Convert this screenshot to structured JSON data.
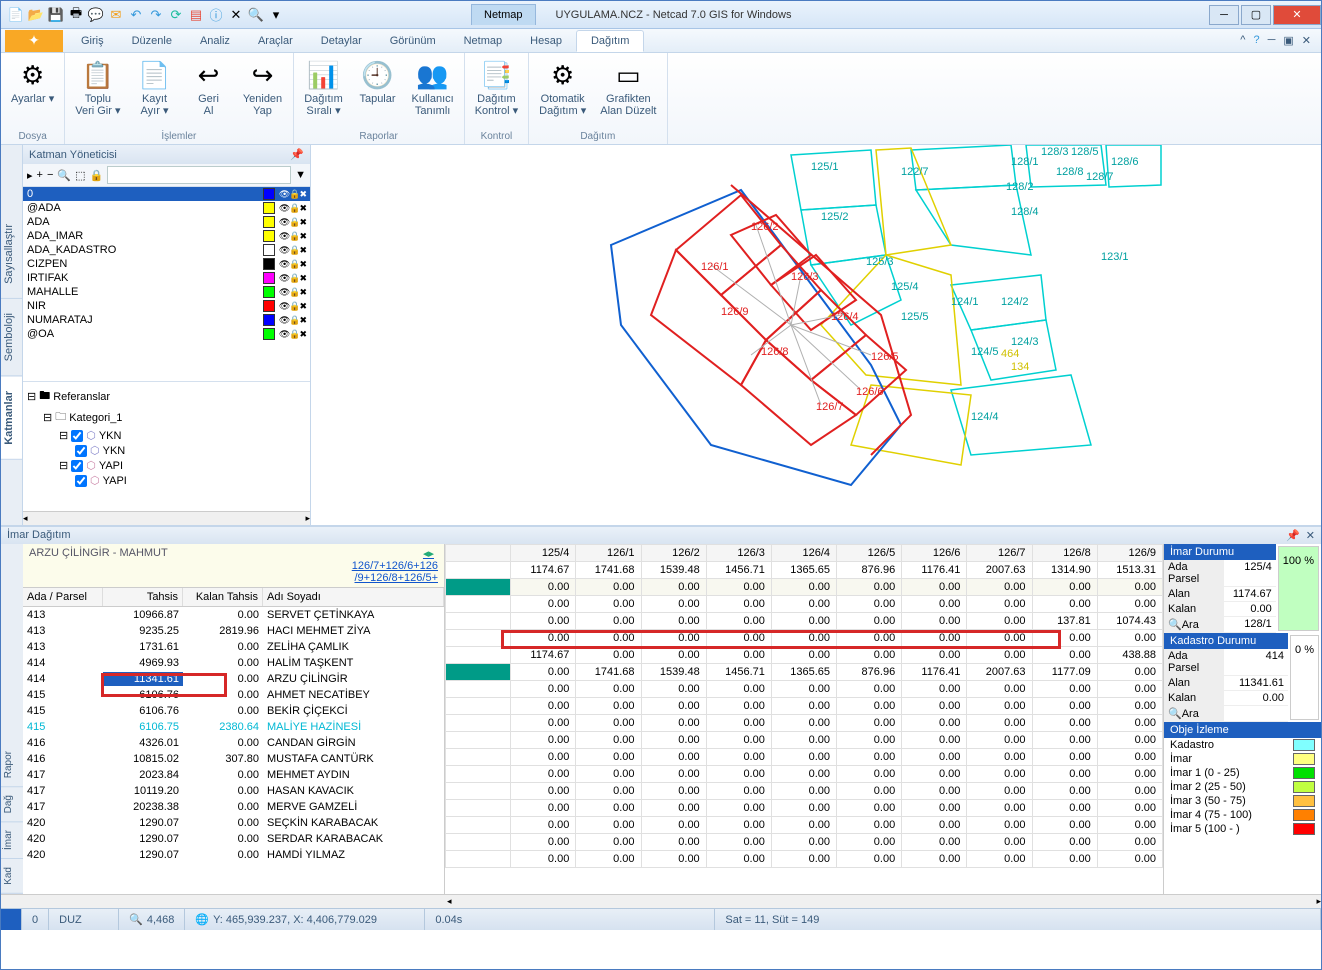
{
  "window": {
    "tab": "Netmap",
    "title": "UYGULAMA.NCZ - Netcad 7.0 GIS for Windows"
  },
  "menu": {
    "items": [
      "Giriş",
      "Düzenle",
      "Analiz",
      "Araçlar",
      "Detaylar",
      "Görünüm",
      "Netmap",
      "Hesap",
      "Dağıtım"
    ],
    "active": "Dağıtım"
  },
  "ribbon": {
    "groups": [
      {
        "title": "Dosya",
        "btns": [
          {
            "ic": "⚙",
            "l1": "Ayarlar",
            "dd": true
          }
        ]
      },
      {
        "title": "İşlemler",
        "btns": [
          {
            "ic": "📋",
            "l1": "Toplu",
            "l2": "Veri Gir",
            "dd": true
          },
          {
            "ic": "📄",
            "l1": "Kayıt",
            "l2": "Ayır",
            "dd": true
          },
          {
            "ic": "↩",
            "l1": "Geri",
            "l2": "Al"
          },
          {
            "ic": "↪",
            "l1": "Yeniden",
            "l2": "Yap"
          }
        ]
      },
      {
        "title": "Raporlar",
        "btns": [
          {
            "ic": "📊",
            "l1": "Dağıtım",
            "l2": "Sıralı",
            "dd": true
          },
          {
            "ic": "🕘",
            "l1": "Tapular"
          },
          {
            "ic": "👥",
            "l1": "Kullanıcı",
            "l2": "Tanımlı"
          }
        ]
      },
      {
        "title": "Kontrol",
        "btns": [
          {
            "ic": "📑",
            "l1": "Dağıtım",
            "l2": "Kontrol",
            "dd": true
          }
        ]
      },
      {
        "title": "Dağıtım",
        "btns": [
          {
            "ic": "⚙",
            "l1": "Otomatik",
            "l2": "Dağıtım",
            "dd": true
          },
          {
            "ic": "▭",
            "l1": "Grafikten",
            "l2": "Alan Düzelt"
          }
        ]
      }
    ]
  },
  "layerPanel": {
    "title": "Katman Yöneticisi",
    "layers": [
      {
        "n": "0",
        "c": "#0000ff",
        "sel": true
      },
      {
        "n": "@ADA",
        "c": "#ffff00"
      },
      {
        "n": "ADA",
        "c": "#ffff00"
      },
      {
        "n": "  ADA_IMAR",
        "c": "#ffff00"
      },
      {
        "n": "  ADA_KADASTRO",
        "c": "#ffffff"
      },
      {
        "n": "CIZPEN",
        "c": "#000000"
      },
      {
        "n": "IRTIFAK",
        "c": "#ff00ff"
      },
      {
        "n": "MAHALLE",
        "c": "#00ff00"
      },
      {
        "n": "NIR",
        "c": "#ff0000"
      },
      {
        "n": "NUMARATAJ",
        "c": "#0000ff"
      },
      {
        "n": "@OA",
        "c": "#00ff00"
      }
    ],
    "tree": {
      "root": "Referanslar",
      "cat": "Kategori_1",
      "items": [
        "YKN",
        "YKN",
        "YAPI",
        "YAPI"
      ]
    }
  },
  "sideTabs": [
    "Sayısallaştır",
    "Semboloji",
    "Katmanlar"
  ],
  "map": {
    "red_labels": [
      "126/1",
      "126/2",
      "126/3",
      "126/4",
      "126/5",
      "126/6",
      "126/7",
      "126/8",
      "126/9"
    ],
    "cyan_labels": [
      "125/1",
      "125/2",
      "125/3",
      "125/4",
      "125/5",
      "122/7",
      "128/1",
      "128/2",
      "128/3",
      "128/4",
      "128/5",
      "128/6",
      "128/7",
      "128/8",
      "123/1",
      "124/1",
      "124/2",
      "124/3",
      "124/4",
      "124/5",
      "464",
      "134"
    ]
  },
  "bottomPanel": {
    "title": "İmar Dağıtım",
    "owner": "ARZU ÇİLİNGİR - MAHMUT",
    "link1": "126/7+126/6+126",
    "link2": "/9+126/8+126/5+",
    "cols": [
      "Ada / Parsel",
      "Tahsis",
      "Kalan Tahsis",
      "Adı Soyadı"
    ],
    "rows": [
      {
        "a": "413",
        "t": "10966.87",
        "k": "0.00",
        "n": "SERVET ÇETİNKAYA"
      },
      {
        "a": "413",
        "t": "9235.25",
        "k": "2819.96",
        "n": "HACI MEHMET ZİYA"
      },
      {
        "a": "413",
        "t": "1731.61",
        "k": "0.00",
        "n": "ZELİHA ÇAMLIK"
      },
      {
        "a": "414",
        "t": "4969.93",
        "k": "0.00",
        "n": "HALİM TAŞKENT"
      },
      {
        "a": "414",
        "t": "11341.61",
        "k": "0.00",
        "n": "ARZU ÇİLİNGİR",
        "sel": true
      },
      {
        "a": "415",
        "t": "6106.76",
        "k": "0.00",
        "n": "AHMET NECATİBEY"
      },
      {
        "a": "415",
        "t": "6106.76",
        "k": "0.00",
        "n": "BEKİR ÇİÇEKCİ"
      },
      {
        "a": "415",
        "t": "6106.75",
        "k": "2380.64",
        "n": "MALİYE HAZİNESİ",
        "hl": true
      },
      {
        "a": "416",
        "t": "4326.01",
        "k": "0.00",
        "n": "CANDAN GİRGİN"
      },
      {
        "a": "416",
        "t": "10815.02",
        "k": "307.80",
        "n": "MUSTAFA CANTÜRK"
      },
      {
        "a": "417",
        "t": "2023.84",
        "k": "0.00",
        "n": "MEHMET AYDIN"
      },
      {
        "a": "417",
        "t": "10119.20",
        "k": "0.00",
        "n": "HASAN KAVACIK"
      },
      {
        "a": "417",
        "t": "20238.38",
        "k": "0.00",
        "n": "MERVE GAMZELİ"
      },
      {
        "a": "420",
        "t": "1290.07",
        "k": "0.00",
        "n": "SEÇKİN KARABACAK"
      },
      {
        "a": "420",
        "t": "1290.07",
        "k": "0.00",
        "n": "SERDAR KARABACAK"
      },
      {
        "a": "420",
        "t": "1290.07",
        "k": "0.00",
        "n": "HAMDİ YILMAZ"
      }
    ],
    "gridCols": [
      "125/4",
      "126/1",
      "126/2",
      "126/3",
      "126/4",
      "126/5",
      "126/6",
      "126/7",
      "126/8",
      "126/9"
    ],
    "gridTot": [
      "1174.67",
      "1741.68",
      "1539.48",
      "1456.71",
      "1365.65",
      "876.96",
      "1176.41",
      "2007.63",
      "1314.90",
      "1513.31"
    ],
    "gridZero": [
      "0.00",
      "0.00",
      "0.00",
      "0.00",
      "0.00",
      "0.00",
      "0.00",
      "0.00",
      "0.00",
      "0.00"
    ],
    "gridRows": [
      [
        "0.00",
        "0.00",
        "0.00",
        "0.00",
        "0.00",
        "0.00",
        "0.00",
        "0.00",
        "0.00",
        "0.00"
      ],
      [
        "0.00",
        "0.00",
        "0.00",
        "0.00",
        "0.00",
        "0.00",
        "0.00",
        "0.00",
        "137.81",
        "1074.43"
      ],
      [
        "0.00",
        "0.00",
        "0.00",
        "0.00",
        "0.00",
        "0.00",
        "0.00",
        "0.00",
        "0.00",
        "0.00"
      ],
      [
        "1174.67",
        "0.00",
        "0.00",
        "0.00",
        "0.00",
        "0.00",
        "0.00",
        "0.00",
        "0.00",
        "438.88"
      ],
      [
        "0.00",
        "1741.68",
        "1539.48",
        "1456.71",
        "1365.65",
        "876.96",
        "1176.41",
        "2007.63",
        "1177.09",
        "0.00"
      ],
      [
        "0.00",
        "0.00",
        "0.00",
        "0.00",
        "0.00",
        "0.00",
        "0.00",
        "0.00",
        "0.00",
        "0.00"
      ],
      [
        "0.00",
        "0.00",
        "0.00",
        "0.00",
        "0.00",
        "0.00",
        "0.00",
        "0.00",
        "0.00",
        "0.00"
      ],
      [
        "0.00",
        "0.00",
        "0.00",
        "0.00",
        "0.00",
        "0.00",
        "0.00",
        "0.00",
        "0.00",
        "0.00"
      ],
      [
        "0.00",
        "0.00",
        "0.00",
        "0.00",
        "0.00",
        "0.00",
        "0.00",
        "0.00",
        "0.00",
        "0.00"
      ],
      [
        "0.00",
        "0.00",
        "0.00",
        "0.00",
        "0.00",
        "0.00",
        "0.00",
        "0.00",
        "0.00",
        "0.00"
      ],
      [
        "0.00",
        "0.00",
        "0.00",
        "0.00",
        "0.00",
        "0.00",
        "0.00",
        "0.00",
        "0.00",
        "0.00"
      ],
      [
        "0.00",
        "0.00",
        "0.00",
        "0.00",
        "0.00",
        "0.00",
        "0.00",
        "0.00",
        "0.00",
        "0.00"
      ],
      [
        "0.00",
        "0.00",
        "0.00",
        "0.00",
        "0.00",
        "0.00",
        "0.00",
        "0.00",
        "0.00",
        "0.00"
      ],
      [
        "0.00",
        "0.00",
        "0.00",
        "0.00",
        "0.00",
        "0.00",
        "0.00",
        "0.00",
        "0.00",
        "0.00"
      ],
      [
        "0.00",
        "0.00",
        "0.00",
        "0.00",
        "0.00",
        "0.00",
        "0.00",
        "0.00",
        "0.00",
        "0.00"
      ],
      [
        "0.00",
        "0.00",
        "0.00",
        "0.00",
        "0.00",
        "0.00",
        "0.00",
        "0.00",
        "0.00",
        "0.00"
      ]
    ],
    "imarDurumu": {
      "hdr": "İmar Durumu",
      "ada": "Ada Parsel",
      "adaV": "125/4",
      "alan": "Alan",
      "alanV": "1174.67",
      "kalan": "Kalan",
      "kalanV": "0.00",
      "ara": "Ara",
      "araV": "128/1",
      "pct": "100 %"
    },
    "kadastro": {
      "hdr": "Kadastro  Durumu",
      "ada": "Ada Parsel",
      "adaV": "414",
      "alan": "Alan",
      "alanV": "11341.61",
      "kalan": "Kalan",
      "kalanV": "0.00",
      "ara": "Ara",
      "pct": "0 %"
    },
    "obje": {
      "hdr": "Obje İzleme",
      "items": [
        {
          "n": "Kadastro",
          "c": "#80ffff"
        },
        {
          "n": "İmar",
          "c": "#ffff80"
        },
        {
          "n": "İmar 1 (0 - 25)",
          "c": "#00e000"
        },
        {
          "n": "İmar 2 (25 - 50)",
          "c": "#c0ff40"
        },
        {
          "n": "İmar 3 (50 - 75)",
          "c": "#ffc040"
        },
        {
          "n": "İmar 4 (75 - 100)",
          "c": "#ff8000"
        },
        {
          "n": "İmar 5 (100 - )",
          "c": "#ff0000"
        }
      ]
    }
  },
  "bpSideTabs": [
    "Rapor",
    "Dağ",
    "İmar",
    "Kad"
  ],
  "status": {
    "c0": "0",
    "duz": "DUZ",
    "zoom": "4,468",
    "coords": "Y: 465,939.237, X: 4,406,779.029",
    "time": "0.04s",
    "pos": "Sat = 11, Süt = 149"
  }
}
